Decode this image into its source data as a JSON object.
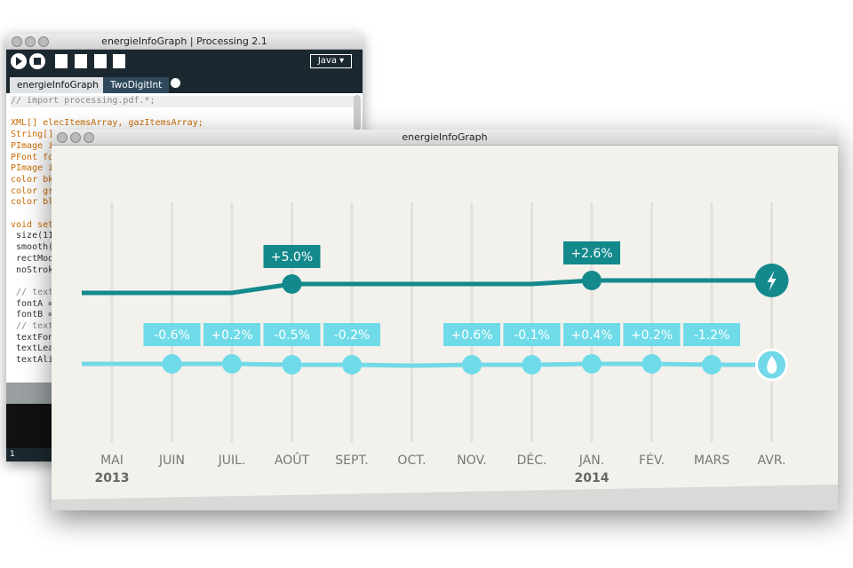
{
  "ide": {
    "title": "energieInfoGraph | Processing 2.1",
    "mode": "Java",
    "tabs": [
      "energieInfoGraph",
      "TwoDigitInt"
    ],
    "code_blocks": [
      [
        "// import processing.pdf.*;"
      ],
      [
        "XML[] elecItemsArray, gazItemsArray;",
        "String[]",
        "PImage i",
        "PFont fo",
        "PImage i",
        "color bk",
        "color gr",
        "color bl"
      ],
      [
        "void set",
        " size(11",
        " smooth(",
        " rectMod",
        " noStrok"
      ],
      [
        " // text",
        " fontA =",
        " fontB =",
        " // text",
        " textFon",
        " textLea",
        " textAli"
      ]
    ],
    "line_number": "1"
  },
  "chart_window": {
    "title": "energieInfoGraph",
    "months": [
      "MAI",
      "JUIN",
      "JUIL.",
      "AOÛT",
      "SEPT.",
      "OCT.",
      "NOV.",
      "DÉC.",
      "JAN.",
      "FÉV.",
      "MARS",
      "AVR."
    ],
    "years": [
      "2013",
      null,
      null,
      null,
      null,
      null,
      null,
      null,
      "2014",
      null,
      null,
      null
    ],
    "elec_labels": [
      null,
      null,
      null,
      "+5.0%",
      null,
      null,
      null,
      null,
      "+2.6%",
      null,
      null,
      null
    ],
    "gaz_labels": [
      null,
      "-0.6%",
      "+0.2%",
      "-0.5%",
      "-0.2%",
      null,
      "+0.6%",
      "-0.1%",
      "+0.4%",
      "+0.2%",
      "-1.2%",
      null
    ]
  }
}
